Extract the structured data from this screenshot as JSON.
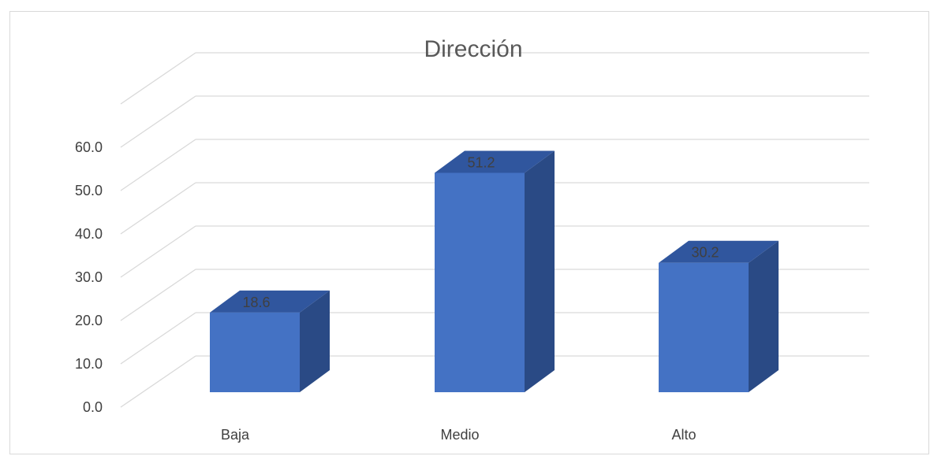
{
  "chart_data": {
    "type": "bar",
    "title": "Dirección",
    "categories": [
      "Baja",
      "Medio",
      "Alto"
    ],
    "values": [
      18.6,
      51.2,
      30.2
    ],
    "data_labels": [
      "18.6",
      "51.2",
      "30.2"
    ],
    "ylim": [
      0,
      60
    ],
    "yticks": [
      "0.0",
      "10.0",
      "20.0",
      "30.0",
      "40.0",
      "50.0",
      "60.0"
    ],
    "xlabel": "",
    "ylabel": "",
    "grid": true,
    "style": "3d-column",
    "colors": {
      "front": "#4472C4",
      "side": "#2A4A85",
      "top": "#30569E",
      "grid": "#D9D9D9"
    }
  }
}
